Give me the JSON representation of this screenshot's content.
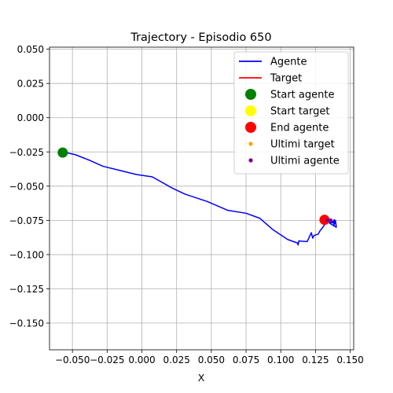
{
  "chart_data": {
    "type": "line",
    "title": "Trajectory - Episodio 650",
    "xlabel": "X",
    "ylabel": "",
    "xlim": [
      -0.0665,
      0.1525
    ],
    "ylim": [
      -0.1695,
      0.0515
    ],
    "xticks": [
      -0.05,
      -0.025,
      0.0,
      0.025,
      0.05,
      0.075,
      0.1,
      0.125,
      0.15
    ],
    "xtick_labels": [
      "−0.050",
      "−0.025",
      "0.000",
      "0.025",
      "0.050",
      "0.075",
      "0.100",
      "0.125",
      "0.150"
    ],
    "yticks": [
      0.05,
      0.025,
      0.0,
      -0.025,
      -0.05,
      -0.075,
      -0.1,
      -0.125,
      -0.15
    ],
    "ytick_labels": [
      "0.050",
      "0.025",
      "0.000",
      "−0.025",
      "−0.050",
      "−0.075",
      "−0.100",
      "−0.125",
      "−0.150"
    ],
    "grid": true,
    "legend_position": "top-right",
    "series": [
      {
        "name": "Agente",
        "kind": "line",
        "color": "#0000ff",
        "points": [
          [
            -0.057,
            -0.025
          ],
          [
            -0.048,
            -0.027
          ],
          [
            -0.038,
            -0.031
          ],
          [
            -0.028,
            -0.0355
          ],
          [
            -0.016,
            -0.0385
          ],
          [
            -0.004,
            -0.0415
          ],
          [
            0.0075,
            -0.0432
          ],
          [
            0.022,
            -0.0515
          ],
          [
            0.031,
            -0.0558
          ],
          [
            0.047,
            -0.0612
          ],
          [
            0.062,
            -0.0677
          ],
          [
            0.075,
            -0.0698
          ],
          [
            0.085,
            -0.0735
          ],
          [
            0.094,
            -0.0815
          ],
          [
            0.105,
            -0.089
          ],
          [
            0.112,
            -0.0915
          ],
          [
            0.1125,
            -0.093
          ],
          [
            0.113,
            -0.09
          ],
          [
            0.119,
            -0.0905
          ],
          [
            0.122,
            -0.084
          ],
          [
            0.123,
            -0.088
          ],
          [
            0.124,
            -0.086
          ],
          [
            0.127,
            -0.085
          ],
          [
            0.128,
            -0.083
          ],
          [
            0.1295,
            -0.081
          ],
          [
            0.13,
            -0.0805
          ],
          [
            0.132,
            -0.0775
          ],
          [
            0.134,
            -0.0765
          ],
          [
            0.1355,
            -0.0745
          ],
          [
            0.137,
            -0.077
          ],
          [
            0.1385,
            -0.0745
          ],
          [
            0.138,
            -0.079
          ],
          [
            0.1395,
            -0.076
          ],
          [
            0.14,
            -0.08
          ],
          [
            0.1375,
            -0.0785
          ],
          [
            0.135,
            -0.077
          ],
          [
            0.1395,
            -0.075
          ],
          [
            0.1378,
            -0.077
          ]
        ]
      },
      {
        "name": "Target",
        "kind": "line",
        "color": "#ff0000",
        "points": []
      },
      {
        "name": "Start agente",
        "kind": "scatter",
        "color": "#008000",
        "points": [
          [
            -0.057,
            -0.0255
          ]
        ]
      },
      {
        "name": "Start target",
        "kind": "scatter",
        "color": "#ffff00",
        "points": []
      },
      {
        "name": "End agente",
        "kind": "scatter",
        "color": "#ff0000",
        "points": [
          [
            0.1315,
            -0.0746
          ]
        ]
      },
      {
        "name": "Ultimi target",
        "kind": "scatter",
        "color": "#ffa500",
        "points": []
      },
      {
        "name": "Ultimi agente",
        "kind": "scatter",
        "color": "#800080",
        "points": [
          [
            0.1335,
            -0.0748
          ],
          [
            0.135,
            -0.0752
          ],
          [
            0.136,
            -0.0748
          ]
        ]
      }
    ],
    "legend": [
      {
        "label": "Agente",
        "marker": "line",
        "color": "#0000ff"
      },
      {
        "label": "Target",
        "marker": "line",
        "color": "#ff0000"
      },
      {
        "label": "Start agente",
        "marker": "big-dot",
        "color": "#008000"
      },
      {
        "label": "Start target",
        "marker": "big-dot",
        "color": "#ffff00"
      },
      {
        "label": "End agente",
        "marker": "big-dot",
        "color": "#ff0000"
      },
      {
        "label": "Ultimi target",
        "marker": "small-dot",
        "color": "#ffa500"
      },
      {
        "label": "Ultimi agente",
        "marker": "small-dot",
        "color": "#800080"
      }
    ]
  }
}
